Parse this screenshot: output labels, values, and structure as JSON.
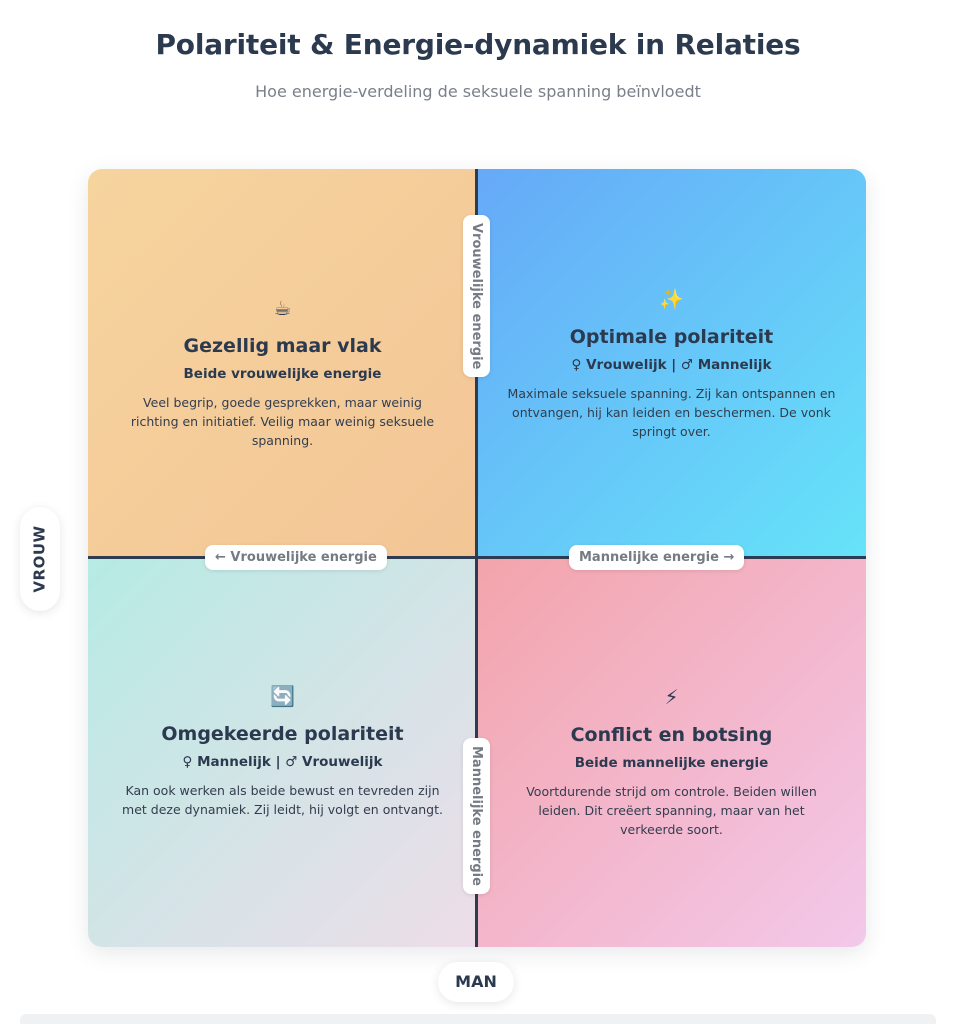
{
  "header": {
    "title": "Polariteit & Energie-dynamiek in Relaties",
    "subtitle": "Hoe energie-verdeling de seksuele spanning beïnvloedt"
  },
  "axes": {
    "y_label": "VROUW",
    "x_label": "MAN",
    "top_label": "Vrouwelijke energie",
    "bottom_label": "Mannelijke energie",
    "left_label": "← Vrouwelijke energie",
    "right_label": "Mannelijke energie →"
  },
  "quadrants": {
    "top_left": {
      "icon": "☕",
      "icon_name": "coffee-cup-icon",
      "title": "Gezellig maar vlak",
      "subtitle": "Beide vrouwelijke energie",
      "description": "Veel begrip, goede gesprekken, maar weinig richting en initiatief. Veilig maar weinig seksuele spanning.",
      "colors": [
        "#f6d49e",
        "#f3c596"
      ]
    },
    "top_right": {
      "icon": "✨",
      "icon_name": "sparkles-icon",
      "title": "Optimale polariteit",
      "subtitle": "♀ Vrouwelijk | ♂ Mannelijk",
      "description": "Maximale seksuele spanning. Zij kan ontspannen en ontvangen, hij kan leiden en beschermen. De vonk springt over.",
      "colors": [
        "#66a9f8",
        "#66e3f9"
      ]
    },
    "bottom_left": {
      "icon": "🔄",
      "icon_name": "cycle-arrows-icon",
      "title": "Omgekeerde polariteit",
      "subtitle": "♀ Mannelijk | ♂ Vrouwelijk",
      "description": "Kan ook werken als beide bewust en tevreden zijn met deze dynamiek. Zij leidt, hij volgt en ontvangt.",
      "colors": [
        "#b6ebe4",
        "#eedde9"
      ]
    },
    "bottom_right": {
      "icon": "⚡",
      "icon_name": "lightning-icon",
      "title": "Conflict en botsing",
      "subtitle": "Beide mannelijke energie",
      "description": "Voortdurende strijd om controle. Beiden willen leiden. Dit creëert spanning, maar van het verkeerde soort.",
      "colors": [
        "#f3a4ab",
        "#f3c8ea"
      ]
    }
  }
}
